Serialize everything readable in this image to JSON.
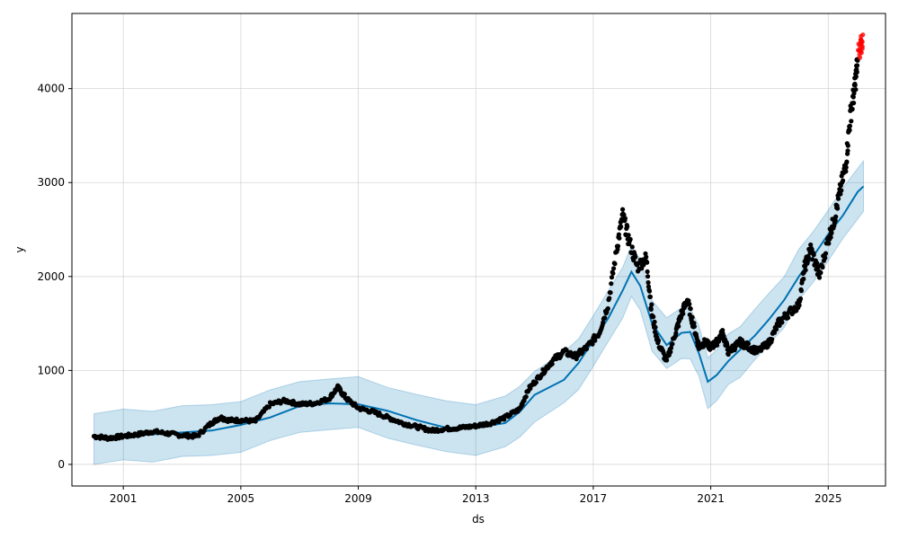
{
  "chart_data": {
    "type": "line",
    "title": "",
    "xlabel": "ds",
    "ylabel": "y",
    "xlim": [
      1999.25,
      2026.95
    ],
    "ylim": [
      -230,
      4800
    ],
    "x_ticks": [
      2001,
      2005,
      2009,
      2013,
      2017,
      2021,
      2025
    ],
    "x_tick_labels": [
      "2001",
      "2005",
      "2009",
      "2013",
      "2017",
      "2021",
      "2025"
    ],
    "y_ticks": [
      0,
      1000,
      2000,
      3000,
      4000
    ],
    "y_tick_labels": [
      "0",
      "1000",
      "2000",
      "3000",
      "4000"
    ],
    "grid": true,
    "legend": "none",
    "colors": {
      "forecast_line": "#0072B2",
      "uncertainty_band": "#0072B2",
      "actual_points": "#000000",
      "highlight_points": "#ff0000"
    },
    "forecast": {
      "x": [
        2000.0,
        2001.0,
        2002.0,
        2003.0,
        2004.0,
        2005.0,
        2006.0,
        2007.0,
        2008.0,
        2009.0,
        2010.0,
        2011.0,
        2012.0,
        2013.0,
        2014.0,
        2014.5,
        2015.0,
        2016.0,
        2016.5,
        2017.0,
        2017.5,
        2018.0,
        2018.3,
        2018.6,
        2019.0,
        2019.5,
        2020.0,
        2020.3,
        2020.6,
        2020.9,
        2021.2,
        2021.6,
        2022.0,
        2022.5,
        2023.0,
        2023.5,
        2024.0,
        2024.5,
        2025.0,
        2025.5,
        2026.0,
        2026.2
      ],
      "y": [
        270,
        300,
        320,
        340,
        360,
        420,
        500,
        620,
        650,
        640,
        570,
        470,
        390,
        390,
        440,
        560,
        740,
        900,
        1080,
        1320,
        1550,
        1850,
        2050,
        1900,
        1500,
        1270,
        1400,
        1410,
        1180,
        880,
        950,
        1100,
        1220,
        1370,
        1550,
        1750,
        2000,
        2220,
        2450,
        2650,
        2900,
        2960
      ]
    },
    "band_halfwidth": 270,
    "actual": {
      "x": [
        2000.0,
        2000.5,
        2001.0,
        2001.5,
        2002.0,
        2002.5,
        2003.0,
        2003.5,
        2004.0,
        2004.3,
        2004.6,
        2005.0,
        2005.5,
        2006.0,
        2006.5,
        2007.0,
        2007.5,
        2008.0,
        2008.3,
        2008.6,
        2009.0,
        2009.5,
        2010.0,
        2010.5,
        2011.0,
        2011.5,
        2012.0,
        2012.5,
        2013.0,
        2013.5,
        2014.0,
        2014.5,
        2014.8,
        2015.2,
        2015.6,
        2016.0,
        2016.4,
        2016.8,
        2017.2,
        2017.5,
        2017.8,
        2018.0,
        2018.2,
        2018.5,
        2018.8,
        2019.0,
        2019.2,
        2019.5,
        2019.8,
        2020.0,
        2020.2,
        2020.4,
        2020.6,
        2020.8,
        2021.0,
        2021.2,
        2021.4,
        2021.6,
        2021.8,
        2022.0,
        2022.3,
        2022.6,
        2023.0,
        2023.3,
        2023.6,
        2024.0,
        2024.2,
        2024.4,
        2024.7,
        2025.0,
        2025.2,
        2025.4,
        2025.6,
        2025.75,
        2025.9,
        2026.0
      ],
      "y": [
        300,
        280,
        300,
        320,
        350,
        330,
        310,
        300,
        440,
        500,
        470,
        470,
        460,
        640,
        680,
        640,
        650,
        700,
        820,
        700,
        600,
        560,
        500,
        440,
        400,
        360,
        380,
        390,
        410,
        440,
        500,
        590,
        800,
        950,
        1100,
        1200,
        1150,
        1250,
        1400,
        1700,
        2300,
        2650,
        2400,
        2100,
        2200,
        1600,
        1300,
        1100,
        1400,
        1600,
        1750,
        1500,
        1250,
        1300,
        1250,
        1300,
        1400,
        1200,
        1250,
        1300,
        1250,
        1200,
        1300,
        1500,
        1600,
        1700,
        2100,
        2300,
        2000,
        2400,
        2600,
        2900,
        3200,
        3700,
        4000,
        4300
      ]
    },
    "highlight": {
      "x": [
        2026.05,
        2026.08,
        2026.1,
        2026.12,
        2026.15
      ],
      "y": [
        4380,
        4450,
        4500,
        4420,
        4550
      ]
    }
  }
}
